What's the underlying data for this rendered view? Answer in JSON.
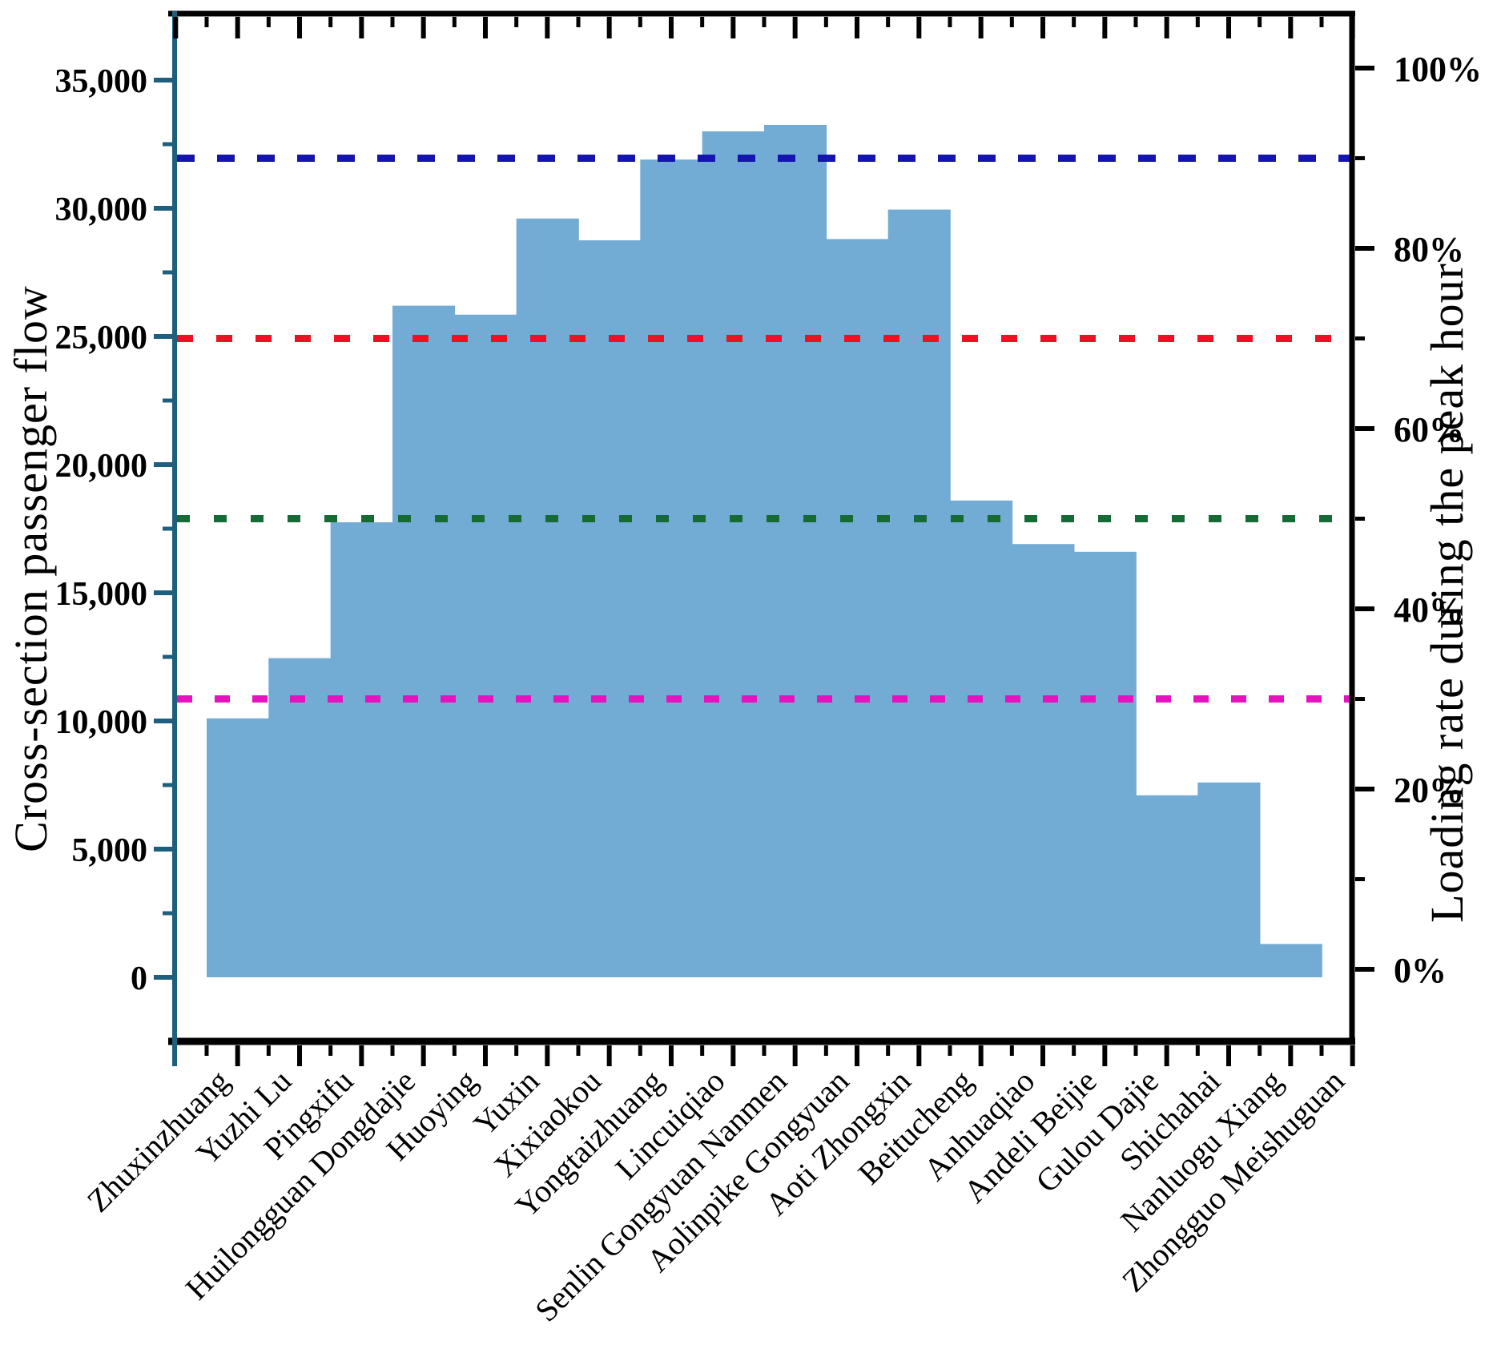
{
  "chart_data": {
    "type": "bar",
    "title": "",
    "xlabel": "",
    "ylabel_left": "Cross-section passenger flow",
    "ylabel_right": "Loading rate during the peak hour",
    "grid": false,
    "legend_position": "none",
    "categories": [
      "Zhuxinzhuang",
      "Yuzhi Lu",
      "Pingxifu",
      "Huilongguan Dongdajie",
      "Huoying",
      "Yuxin",
      "Xixiaokou",
      "Yongtaizhuang",
      "Lincuiqiao",
      "Senlin Gongyuan Nanmen",
      "Aolinpike Gongyuan",
      "Aoti Zhongxin",
      "Beitucheng",
      "Anhuaqiao",
      "Andeli Beijie",
      "Gulou Dajie",
      "Shichahai",
      "Nanluogu Xiang",
      "Zhongguo Meishuguan"
    ],
    "series": [
      {
        "name": "Cross-section passenger flow",
        "values": [
          10100,
          12450,
          17750,
          26200,
          25850,
          29600,
          28750,
          31900,
          33000,
          33250,
          28800,
          29950,
          18600,
          16900,
          16600,
          7100,
          7600,
          1300,
          0
        ]
      }
    ],
    "left_axis": {
      "range": [
        0,
        35000
      ],
      "major_tick_step": 5000,
      "minor_tick_step": 2500,
      "tick_labels": [
        "0",
        "5,000",
        "10,000",
        "15,000",
        "20,000",
        "25,000",
        "30,000",
        "35,000"
      ],
      "tick_values": [
        0,
        5000,
        10000,
        15000,
        20000,
        25000,
        30000,
        35000
      ]
    },
    "right_axis": {
      "range": [
        0,
        100
      ],
      "major_tick_step": 20,
      "minor_tick_step": 10,
      "tick_labels": [
        "0%",
        "20%",
        "40%",
        "60%",
        "80%",
        "100%"
      ],
      "tick_values": [
        0,
        20,
        40,
        60,
        80,
        100
      ]
    },
    "reference_lines": [
      {
        "name": "loading-90pct-line",
        "percent": 90,
        "color": "#1414AE",
        "dash": "22 28"
      },
      {
        "name": "loading-70pct-line",
        "percent": 70,
        "color": "#EE1126",
        "dash": "20 29"
      },
      {
        "name": "loading-50pct-line",
        "percent": 50,
        "color": "#166A33",
        "dash": "16 30"
      },
      {
        "name": "loading-30pct-line",
        "percent": 30,
        "color": "#E513BE",
        "dash": "19 28"
      }
    ],
    "colors": {
      "bar_fill": "#72ABD3",
      "left_axis": "#1D5F7D",
      "frame": "#000000"
    }
  }
}
